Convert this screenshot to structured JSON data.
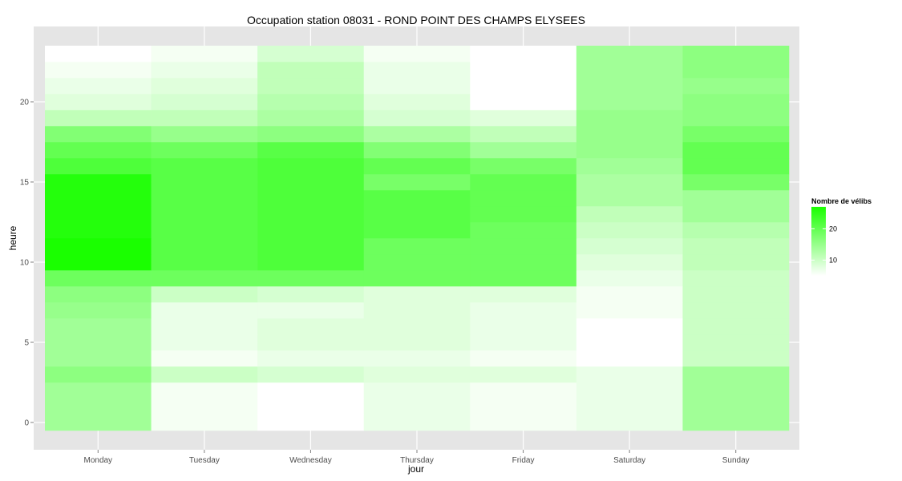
{
  "chart_data": {
    "type": "heatmap",
    "title": "Occupation station 08031 - ROND POINT DES CHAMPS ELYSEES",
    "xlabel": "jour",
    "ylabel": "heure",
    "x_categories": [
      "Monday",
      "Tuesday",
      "Wednesday",
      "Thursday",
      "Friday",
      "Saturday",
      "Sunday"
    ],
    "y_values": [
      0,
      1,
      2,
      3,
      4,
      5,
      6,
      7,
      8,
      9,
      10,
      11,
      12,
      13,
      14,
      15,
      16,
      17,
      18,
      19,
      20,
      21,
      22,
      23
    ],
    "y_ticks": [
      0,
      5,
      10,
      15,
      20
    ],
    "ylim": [
      -0.5,
      23.5
    ],
    "grid": true,
    "legend": {
      "title": "Nombre de vélibs",
      "position": "right",
      "ticks": [
        10,
        20
      ],
      "min": 5,
      "max": 27,
      "color_low": "#ffffff",
      "color_high": "#1aff00"
    },
    "values": [
      [
        14,
        6,
        5,
        7,
        6,
        7,
        14
      ],
      [
        14,
        6,
        5,
        7,
        6,
        7,
        14
      ],
      [
        14,
        6,
        5,
        7,
        6,
        7,
        14
      ],
      [
        16,
        10,
        9,
        8,
        8,
        7,
        14
      ],
      [
        14,
        6,
        7,
        7,
        6,
        5,
        10
      ],
      [
        14,
        7,
        8,
        8,
        7,
        5,
        10
      ],
      [
        14,
        7,
        8,
        8,
        7,
        5,
        10
      ],
      [
        15,
        7,
        7,
        8,
        7,
        6,
        10
      ],
      [
        16,
        10,
        9,
        8,
        8,
        6,
        10
      ],
      [
        19,
        19,
        19,
        19,
        19,
        7,
        10
      ],
      [
        27,
        21,
        22,
        19,
        19,
        8,
        11
      ],
      [
        27,
        21,
        22,
        19,
        19,
        9,
        11
      ],
      [
        26,
        21,
        22,
        21,
        19,
        10,
        12
      ],
      [
        26,
        21,
        22,
        21,
        20,
        11,
        14
      ],
      [
        26,
        21,
        22,
        21,
        20,
        13,
        14
      ],
      [
        26,
        21,
        22,
        18,
        20,
        13,
        18
      ],
      [
        22,
        21,
        22,
        20,
        18,
        14,
        20
      ],
      [
        20,
        19,
        21,
        17,
        14,
        15,
        20
      ],
      [
        17,
        15,
        16,
        13,
        11,
        15,
        18
      ],
      [
        11,
        11,
        13,
        9,
        8,
        15,
        16
      ],
      [
        8,
        9,
        12,
        8,
        5,
        14,
        16
      ],
      [
        7,
        8,
        11,
        7,
        5,
        14,
        15
      ],
      [
        6,
        7,
        11,
        7,
        5,
        14,
        16
      ],
      [
        5,
        6,
        9,
        6,
        5,
        14,
        16
      ]
    ]
  }
}
